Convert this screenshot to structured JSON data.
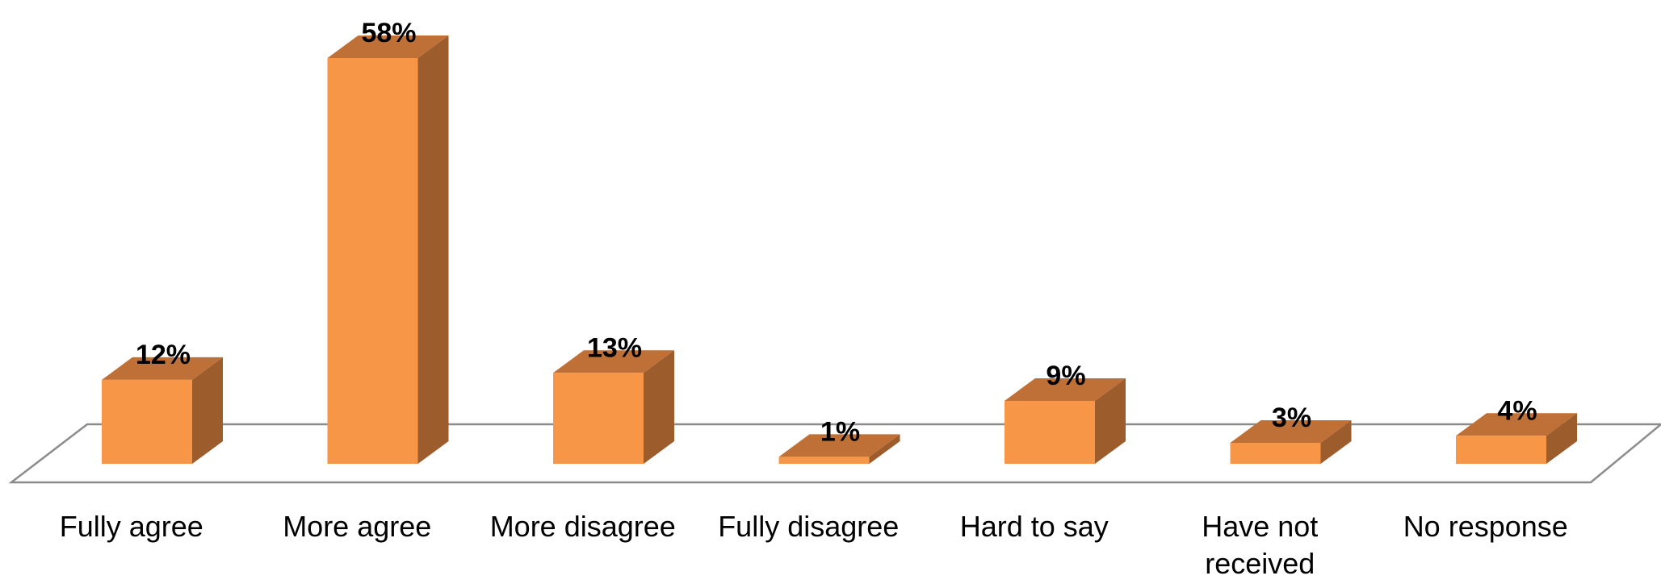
{
  "chart_data": {
    "type": "bar",
    "title": "",
    "xlabel": "",
    "ylabel": "",
    "categories": [
      [
        "Fully agree"
      ],
      [
        "More agree"
      ],
      [
        "More disagree"
      ],
      [
        "Fully disagree"
      ],
      [
        "Hard to say"
      ],
      [
        "Have not",
        "received"
      ],
      [
        "No response"
      ]
    ],
    "values": [
      12,
      58,
      13,
      1,
      9,
      3,
      4
    ],
    "data_labels": [
      "12%",
      "58%",
      "13%",
      "1%",
      "9%",
      "3%",
      "4%"
    ],
    "ylim": [
      0,
      60
    ],
    "grid": false,
    "legend": "none",
    "style": "3d-column",
    "colors": {
      "front": "#F79646",
      "side": "#9C5C2C",
      "top": "#BE7037",
      "floor": "#8C8C8C"
    }
  }
}
